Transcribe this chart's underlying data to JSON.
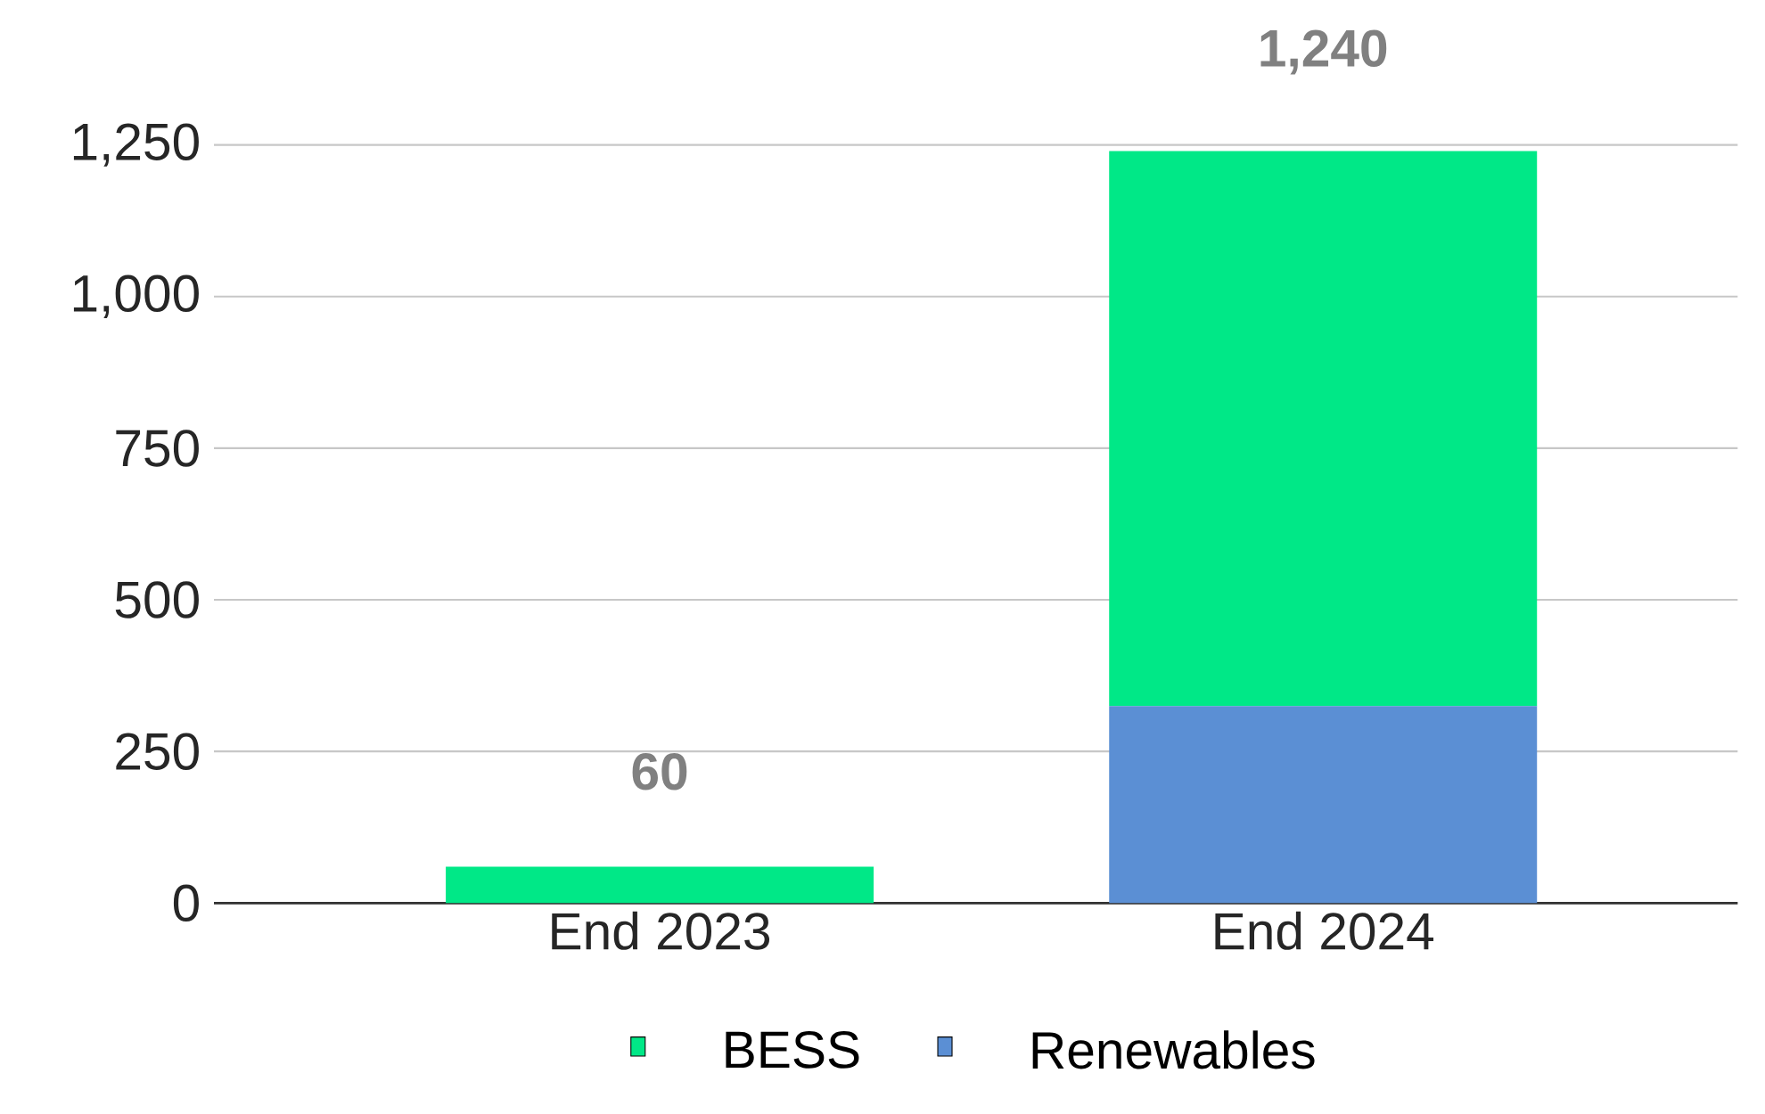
{
  "chart_data": {
    "type": "bar",
    "stacked": true,
    "categories": [
      "End 2023",
      "End 2024"
    ],
    "series": [
      {
        "name": "Renewables",
        "color": "#5b8fd4",
        "values": [
          0,
          325
        ]
      },
      {
        "name": "BESS",
        "color": "#00e887",
        "values": [
          60,
          915
        ]
      }
    ],
    "totals": [
      "60",
      "1,240"
    ],
    "ylim": [
      0,
      1250
    ],
    "yticks": [
      0,
      250,
      500,
      750,
      {
        "value": 1000,
        "label": "1,000"
      },
      {
        "value": 1250,
        "label": "1,250"
      }
    ],
    "grid": "y",
    "legend": "bottom"
  }
}
